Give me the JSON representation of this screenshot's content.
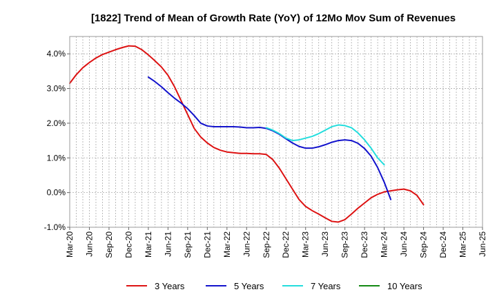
{
  "chart_data": {
    "type": "line",
    "title": "[1822]  Trend of Mean of Growth Rate (YoY) of 12Mo Mov Sum of Revenues",
    "xlabel": "",
    "ylabel": "",
    "ylim": [
      -1.0,
      4.5
    ],
    "y_ticks": [
      -1.0,
      0.0,
      1.0,
      2.0,
      3.0,
      4.0
    ],
    "y_tick_labels": [
      "-1.0%",
      "0.0%",
      "1.0%",
      "2.0%",
      "3.0%",
      "4.0%"
    ],
    "x_tick_labels": [
      "Mar-20",
      "Jun-20",
      "Sep-20",
      "Dec-20",
      "Mar-21",
      "Jun-21",
      "Sep-21",
      "Dec-21",
      "Mar-22",
      "Jun-22",
      "Sep-22",
      "Dec-22",
      "Mar-23",
      "Jun-23",
      "Sep-23",
      "Dec-23",
      "Mar-24",
      "Jun-24",
      "Sep-24",
      "Dec-24",
      "Mar-25",
      "Jun-25"
    ],
    "x_unit": "months since Mar-20",
    "grid": true,
    "legend_position": "bottom",
    "series": [
      {
        "name": "3 Years",
        "color": "#dd1111",
        "points": [
          [
            0,
            3.15
          ],
          [
            1,
            3.4
          ],
          [
            2,
            3.6
          ],
          [
            3,
            3.75
          ],
          [
            4,
            3.88
          ],
          [
            5,
            3.98
          ],
          [
            6,
            4.05
          ],
          [
            7,
            4.12
          ],
          [
            8,
            4.18
          ],
          [
            9,
            4.23
          ],
          [
            10,
            4.22
          ],
          [
            11,
            4.12
          ],
          [
            12,
            3.97
          ],
          [
            13,
            3.8
          ],
          [
            14,
            3.62
          ],
          [
            15,
            3.38
          ],
          [
            16,
            3.05
          ],
          [
            17,
            2.65
          ],
          [
            18,
            2.25
          ],
          [
            19,
            1.85
          ],
          [
            20,
            1.6
          ],
          [
            21,
            1.43
          ],
          [
            22,
            1.3
          ],
          [
            23,
            1.22
          ],
          [
            24,
            1.17
          ],
          [
            25,
            1.15
          ],
          [
            26,
            1.13
          ],
          [
            27,
            1.13
          ],
          [
            28,
            1.12
          ],
          [
            29,
            1.12
          ],
          [
            30,
            1.1
          ],
          [
            31,
            0.95
          ],
          [
            32,
            0.7
          ],
          [
            33,
            0.4
          ],
          [
            34,
            0.1
          ],
          [
            35,
            -0.2
          ],
          [
            36,
            -0.4
          ],
          [
            37,
            -0.52
          ],
          [
            38,
            -0.62
          ],
          [
            39,
            -0.73
          ],
          [
            40,
            -0.83
          ],
          [
            41,
            -0.85
          ],
          [
            42,
            -0.78
          ],
          [
            43,
            -0.62
          ],
          [
            44,
            -0.45
          ],
          [
            45,
            -0.3
          ],
          [
            46,
            -0.15
          ],
          [
            47,
            -0.05
          ],
          [
            48,
            0.02
          ],
          [
            49,
            0.05
          ],
          [
            50,
            0.08
          ],
          [
            51,
            0.1
          ],
          [
            52,
            0.05
          ],
          [
            53,
            -0.08
          ],
          [
            54,
            -0.35
          ]
        ]
      },
      {
        "name": "5 Years",
        "color": "#1111cc",
        "points": [
          [
            12,
            3.33
          ],
          [
            13,
            3.2
          ],
          [
            14,
            3.05
          ],
          [
            15,
            2.88
          ],
          [
            16,
            2.72
          ],
          [
            17,
            2.58
          ],
          [
            18,
            2.42
          ],
          [
            19,
            2.22
          ],
          [
            20,
            2.0
          ],
          [
            21,
            1.92
          ],
          [
            22,
            1.9
          ],
          [
            23,
            1.9
          ],
          [
            24,
            1.9
          ],
          [
            25,
            1.9
          ],
          [
            26,
            1.89
          ],
          [
            27,
            1.87
          ],
          [
            28,
            1.87
          ],
          [
            29,
            1.88
          ],
          [
            30,
            1.85
          ],
          [
            31,
            1.78
          ],
          [
            32,
            1.68
          ],
          [
            33,
            1.55
          ],
          [
            34,
            1.43
          ],
          [
            35,
            1.33
          ],
          [
            36,
            1.28
          ],
          [
            37,
            1.28
          ],
          [
            38,
            1.32
          ],
          [
            39,
            1.38
          ],
          [
            40,
            1.45
          ],
          [
            41,
            1.5
          ],
          [
            42,
            1.52
          ],
          [
            43,
            1.5
          ],
          [
            44,
            1.42
          ],
          [
            45,
            1.27
          ],
          [
            46,
            1.05
          ],
          [
            47,
            0.72
          ],
          [
            48,
            0.3
          ],
          [
            49,
            -0.2
          ]
        ]
      },
      {
        "name": "7 Years",
        "color": "#22dddd",
        "points": [
          [
            30,
            1.87
          ],
          [
            31,
            1.8
          ],
          [
            32,
            1.7
          ],
          [
            33,
            1.57
          ],
          [
            34,
            1.5
          ],
          [
            35,
            1.52
          ],
          [
            36,
            1.57
          ],
          [
            37,
            1.62
          ],
          [
            38,
            1.7
          ],
          [
            39,
            1.8
          ],
          [
            40,
            1.9
          ],
          [
            41,
            1.95
          ],
          [
            42,
            1.93
          ],
          [
            43,
            1.87
          ],
          [
            44,
            1.72
          ],
          [
            45,
            1.52
          ],
          [
            46,
            1.28
          ],
          [
            47,
            1.0
          ],
          [
            48,
            0.8
          ]
        ]
      },
      {
        "name": "10 Years",
        "color": "#118811",
        "points": []
      }
    ]
  }
}
